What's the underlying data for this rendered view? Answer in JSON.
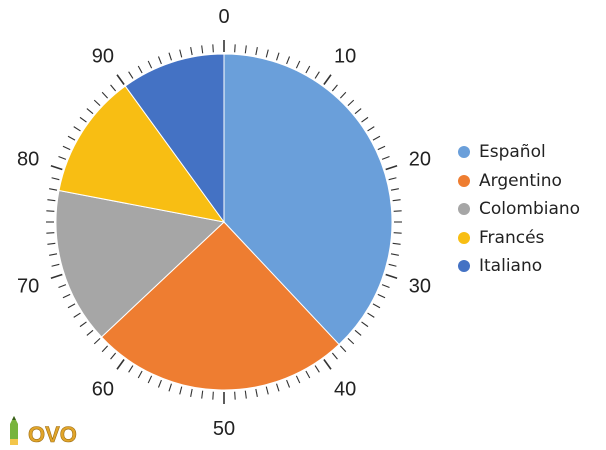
{
  "chart_data": {
    "type": "pie",
    "scale_min": 0,
    "scale_max": 100,
    "scale_labels": [
      "0",
      "10",
      "20",
      "30",
      "40",
      "50",
      "60",
      "70",
      "80",
      "90"
    ],
    "categories": [
      "Español",
      "Argentino",
      "Colombiano",
      "Francés",
      "Italiano"
    ],
    "values": [
      38,
      25,
      15,
      12,
      10
    ],
    "colors": [
      "#6A9FDA",
      "#EE7D31",
      "#A6A6A6",
      "#F8BE13",
      "#4472C4"
    ],
    "legend_position": "right"
  },
  "logo": {
    "text": "OVO",
    "icon": "pencil-icon"
  }
}
